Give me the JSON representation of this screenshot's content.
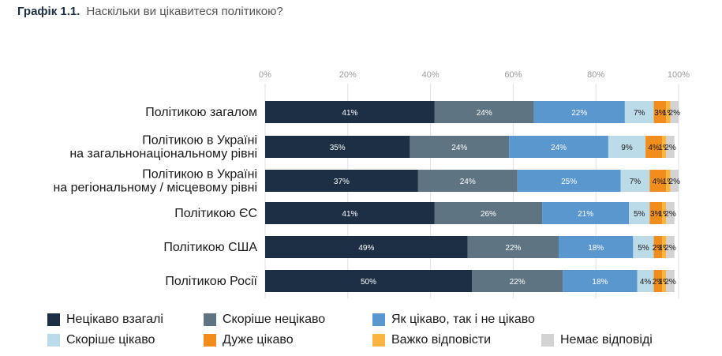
{
  "header": {
    "number": "Графік 1.1.",
    "text": "Наскільки ви цікавитеся політикою?"
  },
  "chart_data": {
    "type": "bar",
    "orientation": "horizontal",
    "stacked": true,
    "xlim": [
      0,
      100
    ],
    "x_ticks": [
      "0%",
      "20%",
      "40%",
      "60%",
      "80%",
      "100%"
    ],
    "grid": true,
    "legend_position": "bottom",
    "categories": [
      [
        "Політикою загалом"
      ],
      [
        "Політикою в Україні",
        "на загальнонаціональному рівні"
      ],
      [
        "Політикою в Україні",
        "на регіональному / місцевому рівні"
      ],
      [
        "Політикою ЄС"
      ],
      [
        "Політикою США"
      ],
      [
        "Політикою Росії"
      ]
    ],
    "series": [
      {
        "name": "Нецікаво взагалі",
        "color": "#1c2f44",
        "label_color": "#ffffff",
        "values": [
          41,
          35,
          37,
          41,
          49,
          50
        ]
      },
      {
        "name": "Скоріше нецікаво",
        "color": "#5e7482",
        "label_color": "#ffffff",
        "values": [
          24,
          24,
          24,
          26,
          22,
          22
        ]
      },
      {
        "name": "Як цікаво, так і не цікаво",
        "color": "#5a97cf",
        "label_color": "#ffffff",
        "values": [
          22,
          24,
          25,
          21,
          18,
          18
        ]
      },
      {
        "name": "Скоріше цікаво",
        "color": "#bcdbe8",
        "label_color": "#1a1a1a",
        "values": [
          7,
          9,
          7,
          5,
          5,
          4
        ]
      },
      {
        "name": "Дуже цікаво",
        "color": "#f08d1c",
        "label_color": "#1a1a1a",
        "values": [
          3,
          4,
          4,
          3,
          2,
          2
        ]
      },
      {
        "name": "Важко відповісти",
        "color": "#f9b540",
        "label_color": "#1a1a1a",
        "values": [
          1,
          1,
          1,
          1,
          1,
          1
        ]
      },
      {
        "name": "Немає відповіді",
        "color": "#d3d3d3",
        "label_color": "#1a1a1a",
        "values": [
          2,
          2,
          2,
          2,
          2,
          2
        ]
      }
    ]
  }
}
